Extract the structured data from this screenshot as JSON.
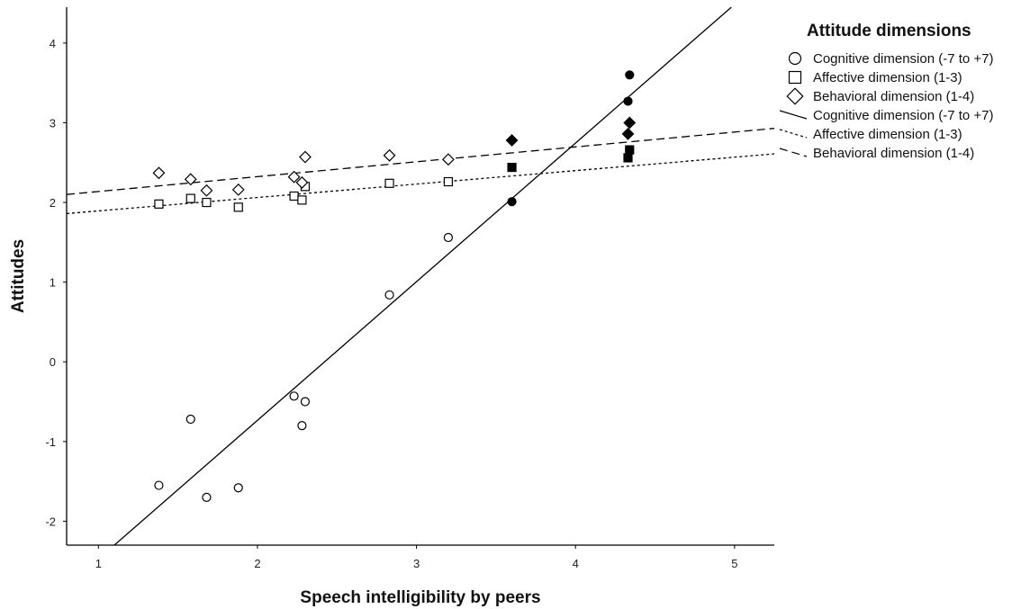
{
  "chart_data": {
    "type": "scatter",
    "title": "",
    "xlabel": "Speech intelligibility by peers",
    "ylabel": "Attitudes",
    "xlim": [
      0.8,
      5.25
    ],
    "ylim": [
      -2.3,
      4.45
    ],
    "x_ticks": [
      "1",
      "2",
      "3",
      "4",
      "5"
    ],
    "y_ticks": [
      "-2",
      "-1",
      "0",
      "1",
      "2",
      "3",
      "4"
    ],
    "grid": false,
    "legend": {
      "title": "Attitude dimensions",
      "placement": "right",
      "marker_entries": [
        {
          "label": "Cognitive dimension (-7 to +7)",
          "marker": "circle"
        },
        {
          "label": "Affective dimension (1-3)",
          "marker": "square"
        },
        {
          "label": "Behavioral dimension (1-4)",
          "marker": "diamond"
        }
      ],
      "line_entries": [
        {
          "label": "Cognitive dimension (-7 to +7)",
          "style": "solid"
        },
        {
          "label": "Affective dimension (1-3)",
          "style": "dotted"
        },
        {
          "label": "Behavioral dimension (1-4)",
          "style": "dashed"
        }
      ]
    },
    "series": [
      {
        "name": "Cognitive dimension (-7 to +7)",
        "marker": "circle",
        "points": [
          {
            "x": 1.38,
            "y": -1.55,
            "filled": false
          },
          {
            "x": 1.58,
            "y": -0.72,
            "filled": false
          },
          {
            "x": 1.68,
            "y": -1.7,
            "filled": false
          },
          {
            "x": 1.88,
            "y": -1.58,
            "filled": false
          },
          {
            "x": 2.23,
            "y": -0.43,
            "filled": false
          },
          {
            "x": 2.28,
            "y": -0.8,
            "filled": false
          },
          {
            "x": 2.3,
            "y": -0.5,
            "filled": false
          },
          {
            "x": 2.83,
            "y": 0.84,
            "filled": false
          },
          {
            "x": 3.2,
            "y": 1.56,
            "filled": false
          },
          {
            "x": 3.6,
            "y": 2.01,
            "filled": true
          },
          {
            "x": 4.33,
            "y": 3.27,
            "filled": true
          },
          {
            "x": 4.34,
            "y": 3.6,
            "filled": true
          }
        ],
        "fit": {
          "style": "solid",
          "x": [
            1.1,
            4.98
          ],
          "y": [
            -2.3,
            4.45
          ]
        }
      },
      {
        "name": "Affective dimension (1-3)",
        "marker": "square",
        "points": [
          {
            "x": 1.38,
            "y": 1.98,
            "filled": false
          },
          {
            "x": 1.58,
            "y": 2.05,
            "filled": false
          },
          {
            "x": 1.68,
            "y": 2.0,
            "filled": false
          },
          {
            "x": 1.88,
            "y": 1.94,
            "filled": false
          },
          {
            "x": 2.23,
            "y": 2.08,
            "filled": false
          },
          {
            "x": 2.28,
            "y": 2.03,
            "filled": false
          },
          {
            "x": 2.3,
            "y": 2.2,
            "filled": false
          },
          {
            "x": 2.83,
            "y": 2.24,
            "filled": false
          },
          {
            "x": 3.2,
            "y": 2.26,
            "filled": false
          },
          {
            "x": 3.6,
            "y": 2.44,
            "filled": true
          },
          {
            "x": 4.33,
            "y": 2.56,
            "filled": true
          },
          {
            "x": 4.34,
            "y": 2.66,
            "filled": true
          }
        ],
        "fit": {
          "style": "dotted",
          "x": [
            0.8,
            5.25
          ],
          "y": [
            1.86,
            2.61
          ]
        }
      },
      {
        "name": "Behavioral dimension (1-4)",
        "marker": "diamond",
        "points": [
          {
            "x": 1.38,
            "y": 2.37,
            "filled": false
          },
          {
            "x": 1.58,
            "y": 2.29,
            "filled": false
          },
          {
            "x": 1.68,
            "y": 2.15,
            "filled": false
          },
          {
            "x": 1.88,
            "y": 2.16,
            "filled": false
          },
          {
            "x": 2.23,
            "y": 2.32,
            "filled": false
          },
          {
            "x": 2.28,
            "y": 2.25,
            "filled": false
          },
          {
            "x": 2.3,
            "y": 2.57,
            "filled": false
          },
          {
            "x": 2.83,
            "y": 2.59,
            "filled": false
          },
          {
            "x": 3.2,
            "y": 2.54,
            "filled": false
          },
          {
            "x": 3.6,
            "y": 2.78,
            "filled": true
          },
          {
            "x": 4.33,
            "y": 2.86,
            "filled": true
          },
          {
            "x": 4.34,
            "y": 3.0,
            "filled": true
          }
        ],
        "fit": {
          "style": "dashed",
          "x": [
            0.8,
            5.25
          ],
          "y": [
            2.1,
            2.93
          ]
        }
      }
    ]
  }
}
